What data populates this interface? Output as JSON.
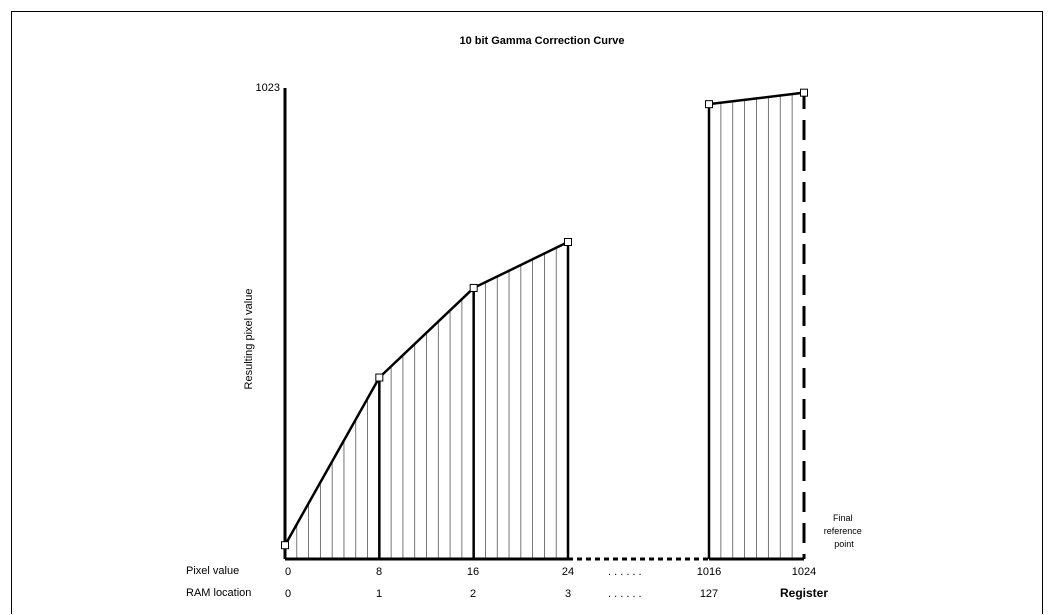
{
  "title": "10 bit Gamma Correction Curve",
  "y_axis": {
    "label": "Resulting pixel value",
    "max_label": "1023"
  },
  "rows": {
    "pixel_label": "Pixel value",
    "ram_label": "RAM location",
    "ellipsis": ". . . . . ."
  },
  "pixel_ticks": [
    "0",
    "8",
    "16",
    "24",
    "1016",
    "1024"
  ],
  "ram_ticks": [
    "0",
    "1",
    "2",
    "3",
    "127",
    "Register"
  ],
  "final_point_label": [
    "Final",
    "reference",
    "point"
  ],
  "chart_data": {
    "type": "line",
    "x_axis": "Pixel value",
    "y_axis": "Resulting pixel value",
    "ylim": [
      0,
      1023
    ],
    "segments": [
      {
        "x": [
          0,
          8,
          16,
          24
        ],
        "y": [
          30,
          395,
          590,
          690
        ]
      },
      {
        "x": [
          1016,
          1024
        ],
        "y": [
          990,
          1015
        ]
      }
    ]
  }
}
